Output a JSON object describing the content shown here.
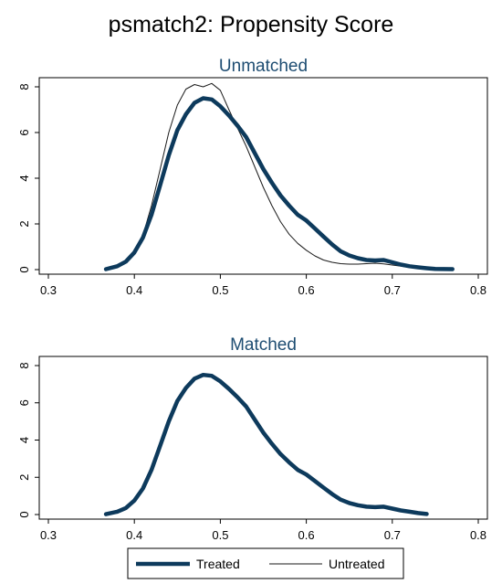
{
  "figure": {
    "title": "psmatch2: Propensity Score",
    "colors": {
      "treated": "#0d3a5c",
      "untreated": "#1a1a1a",
      "subtitle": "#1e4d72"
    }
  },
  "legend": {
    "placement": "bottom-center",
    "items": [
      {
        "label": "Treated"
      },
      {
        "label": "Untreated"
      }
    ]
  },
  "chart_data": [
    {
      "type": "line",
      "title": "Unmatched",
      "xlabel": "",
      "ylabel": "",
      "xlim": [
        0.3,
        0.8
      ],
      "ylim": [
        0,
        8
      ],
      "x_ticks": [
        "0.3",
        "0.4",
        "0.5",
        "0.6",
        "0.7",
        "0.8"
      ],
      "y_ticks": [
        "0",
        "2",
        "4",
        "6",
        "8"
      ],
      "grid": false,
      "series": [
        {
          "name": "Treated",
          "x": [
            0.367,
            0.38,
            0.39,
            0.4,
            0.41,
            0.42,
            0.43,
            0.44,
            0.45,
            0.46,
            0.47,
            0.48,
            0.49,
            0.5,
            0.51,
            0.52,
            0.53,
            0.54,
            0.55,
            0.56,
            0.57,
            0.58,
            0.59,
            0.6,
            0.61,
            0.62,
            0.63,
            0.64,
            0.65,
            0.66,
            0.67,
            0.68,
            0.69,
            0.7,
            0.71,
            0.72,
            0.73,
            0.74,
            0.75,
            0.77
          ],
          "y": [
            0.02,
            0.15,
            0.35,
            0.75,
            1.4,
            2.4,
            3.7,
            5.0,
            6.1,
            6.8,
            7.3,
            7.5,
            7.45,
            7.15,
            6.75,
            6.3,
            5.8,
            5.1,
            4.4,
            3.8,
            3.25,
            2.8,
            2.4,
            2.15,
            1.8,
            1.45,
            1.1,
            0.8,
            0.62,
            0.5,
            0.42,
            0.4,
            0.42,
            0.32,
            0.22,
            0.15,
            0.1,
            0.06,
            0.03,
            0.02
          ]
        },
        {
          "name": "Untreated",
          "x": [
            0.367,
            0.38,
            0.39,
            0.4,
            0.41,
            0.42,
            0.43,
            0.44,
            0.45,
            0.46,
            0.47,
            0.48,
            0.49,
            0.5,
            0.51,
            0.52,
            0.53,
            0.54,
            0.55,
            0.56,
            0.57,
            0.58,
            0.59,
            0.6,
            0.61,
            0.62,
            0.63,
            0.64,
            0.65,
            0.66,
            0.67,
            0.68,
            0.69,
            0.7,
            0.71,
            0.72,
            0.73,
            0.74,
            0.75,
            0.77
          ],
          "y": [
            0.02,
            0.14,
            0.38,
            0.8,
            1.5,
            2.8,
            4.4,
            6.0,
            7.2,
            7.9,
            8.1,
            8.0,
            8.15,
            7.85,
            7.0,
            6.2,
            5.4,
            4.5,
            3.6,
            2.8,
            2.1,
            1.55,
            1.15,
            0.85,
            0.6,
            0.42,
            0.32,
            0.26,
            0.24,
            0.24,
            0.26,
            0.28,
            0.25,
            0.2,
            0.15,
            0.1,
            0.07,
            0.05,
            0.03,
            0.02
          ]
        }
      ]
    },
    {
      "type": "line",
      "title": "Matched",
      "xlabel": "",
      "ylabel": "",
      "xlim": [
        0.3,
        0.8
      ],
      "ylim": [
        0,
        8
      ],
      "x_ticks": [
        "0.3",
        "0.4",
        "0.5",
        "0.6",
        "0.7",
        "0.8"
      ],
      "y_ticks": [
        "0",
        "2",
        "4",
        "6",
        "8"
      ],
      "grid": false,
      "series": [
        {
          "name": "Treated",
          "x": [
            0.367,
            0.38,
            0.39,
            0.4,
            0.41,
            0.42,
            0.43,
            0.44,
            0.45,
            0.46,
            0.47,
            0.48,
            0.49,
            0.5,
            0.51,
            0.52,
            0.53,
            0.54,
            0.55,
            0.56,
            0.57,
            0.58,
            0.59,
            0.6,
            0.61,
            0.62,
            0.63,
            0.64,
            0.65,
            0.66,
            0.67,
            0.68,
            0.69,
            0.7,
            0.71,
            0.72,
            0.73,
            0.74
          ],
          "y": [
            0.02,
            0.15,
            0.35,
            0.75,
            1.4,
            2.4,
            3.7,
            5.0,
            6.1,
            6.8,
            7.3,
            7.5,
            7.45,
            7.15,
            6.75,
            6.3,
            5.8,
            5.1,
            4.4,
            3.8,
            3.25,
            2.8,
            2.4,
            2.15,
            1.8,
            1.45,
            1.1,
            0.8,
            0.62,
            0.5,
            0.42,
            0.4,
            0.42,
            0.32,
            0.22,
            0.15,
            0.08,
            0.03
          ]
        },
        {
          "name": "Untreated",
          "x": [
            0.367,
            0.38,
            0.39,
            0.4,
            0.41,
            0.42,
            0.43,
            0.44,
            0.45,
            0.46,
            0.47,
            0.48,
            0.49,
            0.5,
            0.51,
            0.52,
            0.53,
            0.54,
            0.55,
            0.56,
            0.57,
            0.58,
            0.59,
            0.6,
            0.61,
            0.62,
            0.63,
            0.64,
            0.65,
            0.66,
            0.67,
            0.68,
            0.69,
            0.7,
            0.71,
            0.72,
            0.73,
            0.74
          ],
          "y": [
            0.02,
            0.15,
            0.35,
            0.75,
            1.4,
            2.4,
            3.7,
            5.0,
            6.1,
            6.8,
            7.3,
            7.5,
            7.45,
            7.15,
            6.75,
            6.3,
            5.8,
            5.1,
            4.4,
            3.8,
            3.25,
            2.8,
            2.4,
            2.15,
            1.8,
            1.45,
            1.1,
            0.8,
            0.62,
            0.5,
            0.42,
            0.4,
            0.42,
            0.32,
            0.22,
            0.15,
            0.08,
            0.03
          ]
        }
      ]
    }
  ]
}
